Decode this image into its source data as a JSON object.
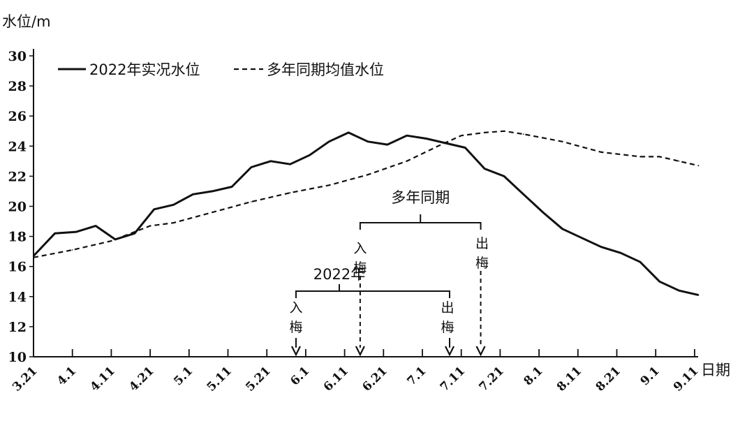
{
  "chart_data": {
    "type": "line",
    "ylabel": "水位/m",
    "xlabel": "日期",
    "ylim": [
      10,
      30
    ],
    "yticks": [
      10,
      12,
      14,
      16,
      18,
      20,
      22,
      24,
      26,
      28,
      30
    ],
    "xlim_index": [
      0,
      18.5
    ],
    "x_tick_labels": [
      "3.21",
      "4.1",
      "4.11",
      "4.21",
      "5.1",
      "5.11",
      "5.21",
      "6.1",
      "6.11",
      "6.21",
      "7.1",
      "7.11",
      "7.21",
      "8.1",
      "8.11",
      "8.21",
      "9.1",
      "9.11"
    ],
    "legend_position": "top-left",
    "grid": false,
    "series": [
      {
        "name": "2022年实况水位",
        "style": "solid",
        "color": "#111111",
        "points": [
          [
            0,
            16.7
          ],
          [
            0.55,
            18.2
          ],
          [
            1.1,
            18.3
          ],
          [
            1.6,
            18.7
          ],
          [
            2.1,
            17.8
          ],
          [
            2.6,
            18.2
          ],
          [
            3.1,
            19.8
          ],
          [
            3.6,
            20.1
          ],
          [
            4.1,
            20.8
          ],
          [
            4.6,
            21.0
          ],
          [
            5.1,
            21.3
          ],
          [
            5.6,
            22.6
          ],
          [
            6.1,
            23.0
          ],
          [
            6.6,
            22.8
          ],
          [
            7.1,
            23.4
          ],
          [
            7.6,
            24.3
          ],
          [
            8.1,
            24.9
          ],
          [
            8.6,
            24.3
          ],
          [
            9.1,
            24.1
          ],
          [
            9.6,
            24.7
          ],
          [
            10.1,
            24.5
          ],
          [
            10.6,
            24.2
          ],
          [
            11.1,
            23.9
          ],
          [
            11.6,
            22.5
          ],
          [
            12.1,
            22.0
          ],
          [
            12.6,
            20.8
          ],
          [
            13.1,
            19.6
          ],
          [
            13.6,
            18.5
          ],
          [
            14.1,
            17.9
          ],
          [
            14.6,
            17.3
          ],
          [
            15.1,
            16.9
          ],
          [
            15.6,
            16.3
          ],
          [
            16.1,
            15.0
          ],
          [
            16.6,
            14.4
          ],
          [
            17.1,
            14.1
          ]
        ]
      },
      {
        "name": "多年同期均值水位",
        "style": "dashed",
        "color": "#111111",
        "points": [
          [
            0,
            16.6
          ],
          [
            1.0,
            17.1
          ],
          [
            2.0,
            17.7
          ],
          [
            3.0,
            18.7
          ],
          [
            3.6,
            18.9
          ],
          [
            4.6,
            19.6
          ],
          [
            5.6,
            20.3
          ],
          [
            6.6,
            20.9
          ],
          [
            7.6,
            21.4
          ],
          [
            8.6,
            22.1
          ],
          [
            9.6,
            23.0
          ],
          [
            10.4,
            24.0
          ],
          [
            11.0,
            24.7
          ],
          [
            11.6,
            24.9
          ],
          [
            12.1,
            25.0
          ],
          [
            12.6,
            24.8
          ],
          [
            13.6,
            24.3
          ],
          [
            14.6,
            23.6
          ],
          [
            15.6,
            23.3
          ],
          [
            16.1,
            23.3
          ],
          [
            16.6,
            23.0
          ],
          [
            17.1,
            22.7
          ]
        ]
      }
    ],
    "annotations": {
      "multi_year_title": "多年同期",
      "y2022_title": "2022年",
      "enter_meiyu": "入梅",
      "exit_meiyu": "出梅",
      "multi_year_period": {
        "start_index": 8.4,
        "end_index": 11.5
      },
      "y2022_period": {
        "start_index": 6.75,
        "end_index": 10.7
      }
    }
  }
}
